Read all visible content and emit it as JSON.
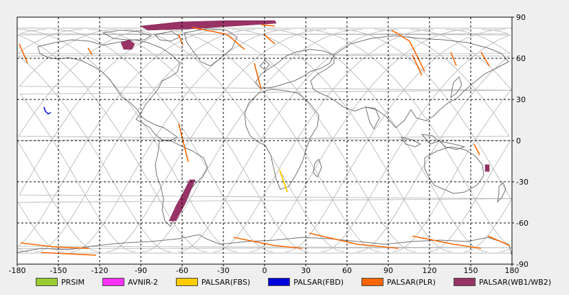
{
  "map": {
    "x_ticks": [
      "-180",
      "-150",
      "-120",
      "-90",
      "-60",
      "-30",
      "0",
      "30",
      "60",
      "90",
      "120",
      "150",
      "180"
    ],
    "y_ticks": [
      "90",
      "60",
      "30",
      "0",
      "-30",
      "-60",
      "-90"
    ],
    "grid": true,
    "background": "#ffffff",
    "coastline_color": "#707070",
    "orbit_color": "#b8b8b8"
  },
  "legend": [
    {
      "label": "PRSIM",
      "color": "#99cc33"
    },
    {
      "label": "AVNIR-2",
      "color": "#ff33ff"
    },
    {
      "label": "PALSAR(FBS)",
      "color": "#ffcc00"
    },
    {
      "label": "PALSAR(FBD)",
      "color": "#0000dd"
    },
    {
      "label": "PALSAR(PLR)",
      "color": "#ff6600"
    },
    {
      "label": "PALSAR(WB1/WB2)",
      "color": "#993366"
    }
  ]
}
